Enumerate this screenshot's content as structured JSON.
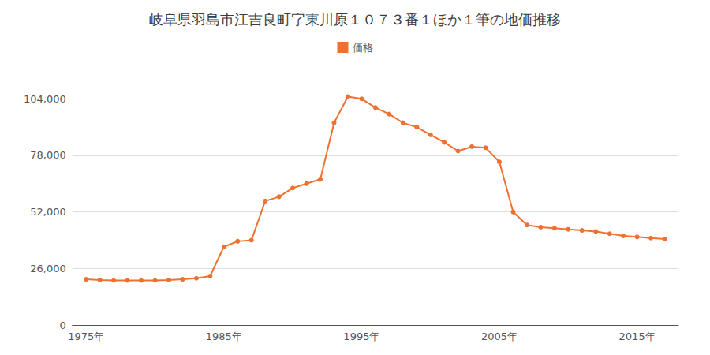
{
  "chart_data": {
    "type": "line",
    "title": "岐阜県羽島市江吉良町字東川原１０７３番１ほか１筆の地価推移",
    "x": [
      1975,
      1976,
      1977,
      1978,
      1979,
      1980,
      1981,
      1982,
      1983,
      1984,
      1985,
      1986,
      1987,
      1988,
      1989,
      1990,
      1991,
      1992,
      1993,
      1994,
      1995,
      1996,
      1997,
      1998,
      1999,
      2000,
      2001,
      2002,
      2003,
      2004,
      2005,
      2006,
      2007,
      2008,
      2009,
      2010,
      2011,
      2012,
      2013,
      2014,
      2015,
      2016,
      2017
    ],
    "series": [
      {
        "name": "価格",
        "color": "#f07030",
        "marker": "circle",
        "values": [
          21000,
          20700,
          20500,
          20500,
          20500,
          20500,
          20700,
          21000,
          21500,
          22500,
          36000,
          38500,
          39000,
          57000,
          59000,
          63000,
          65000,
          67000,
          93000,
          105000,
          104000,
          100000,
          97000,
          93000,
          91000,
          87500,
          84000,
          80000,
          82000,
          81500,
          75000,
          52000,
          46000,
          45000,
          44500,
          44000,
          43500,
          43000,
          42000,
          41000,
          40500,
          40000,
          39500
        ]
      }
    ],
    "xlim": [
      1974,
      2018
    ],
    "xticks": [
      {
        "value": 1975,
        "label": "1975年"
      },
      {
        "value": 1985,
        "label": "1985年"
      },
      {
        "value": 1995,
        "label": "1995年"
      },
      {
        "value": 2005,
        "label": "2005年"
      },
      {
        "value": 2015,
        "label": "2015年"
      }
    ],
    "ylim": [
      0,
      115000
    ],
    "yticks": [
      0,
      {
        "value": 26000,
        "label": "26,000"
      },
      {
        "value": 52000,
        "label": "52,000"
      },
      {
        "value": 78000,
        "label": "78,000"
      },
      {
        "value": 104000,
        "label": "104,000"
      }
    ],
    "grid": true,
    "legend": "top"
  }
}
